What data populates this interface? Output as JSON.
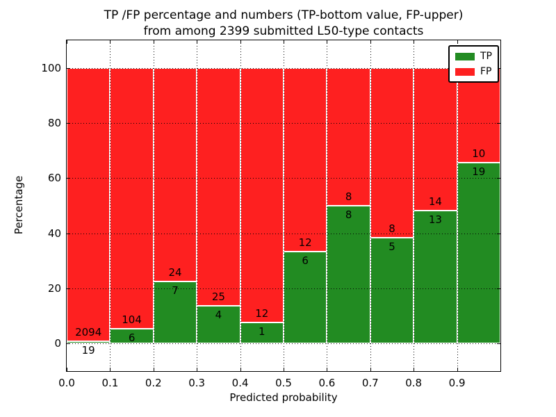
{
  "title": {
    "line1": "TP /FP percentage and numbers (TP-bottom value, FP-upper)",
    "line2": "from among 2399 submitted L50-type contacts"
  },
  "axes": {
    "xlabel": "Predicted probability",
    "ylabel": "Percentage",
    "x_tick_labels": [
      "0.0",
      "0.1",
      "0.2",
      "0.3",
      "0.4",
      "0.5",
      "0.6",
      "0.7",
      "0.8",
      "0.9"
    ],
    "x_tick_values": [
      0.0,
      0.1,
      0.2,
      0.3,
      0.4,
      0.5,
      0.6,
      0.7,
      0.8,
      0.9
    ],
    "y_tick_labels": [
      "0",
      "20",
      "40",
      "60",
      "80",
      "100"
    ],
    "y_tick_values": [
      0,
      20,
      40,
      60,
      80,
      100
    ]
  },
  "colors": {
    "tp": "#228b22",
    "fp": "#fe2020",
    "bar_edge": "#ffffff",
    "grid": "#000000",
    "background": "#ffffff",
    "text": "#000000"
  },
  "legend": {
    "items": [
      {
        "label": "TP",
        "color": "#228b22"
      },
      {
        "label": "FP",
        "color": "#fe2020"
      }
    ]
  },
  "chart_data": {
    "type": "bar",
    "stacked": true,
    "normalized": "each bin scaled to 100%",
    "title": "TP /FP percentage and numbers (TP-bottom value, FP-upper) from among 2399 submitted L50-type contacts",
    "xlabel": "Predicted probability",
    "ylabel": "Percentage",
    "xlim": [
      0.0,
      1.0
    ],
    "ylim": [
      -10,
      110
    ],
    "grid": "dotted, both axes",
    "legend_position": "upper right",
    "bin_width": 0.1,
    "total_contacts": 2399,
    "annotation_scheme": "TP count printed below segment boundary, FP count above",
    "bins": [
      {
        "range": "0.0-0.1",
        "x_start": 0.0,
        "tp": 19,
        "fp": 2094,
        "tp_percent": 0.9
      },
      {
        "range": "0.1-0.2",
        "x_start": 0.1,
        "tp": 6,
        "fp": 104,
        "tp_percent": 5.5
      },
      {
        "range": "0.2-0.3",
        "x_start": 0.2,
        "tp": 7,
        "fp": 24,
        "tp_percent": 22.6
      },
      {
        "range": "0.3-0.4",
        "x_start": 0.3,
        "tp": 4,
        "fp": 25,
        "tp_percent": 13.8
      },
      {
        "range": "0.4-0.5",
        "x_start": 0.4,
        "tp": 1,
        "fp": 12,
        "tp_percent": 7.7
      },
      {
        "range": "0.5-0.6",
        "x_start": 0.5,
        "tp": 6,
        "fp": 12,
        "tp_percent": 33.3
      },
      {
        "range": "0.6-0.7",
        "x_start": 0.6,
        "tp": 8,
        "fp": 8,
        "tp_percent": 50.0
      },
      {
        "range": "0.7-0.8",
        "x_start": 0.7,
        "tp": 5,
        "fp": 8,
        "tp_percent": 38.5
      },
      {
        "range": "0.8-0.9",
        "x_start": 0.8,
        "tp": 13,
        "fp": 14,
        "tp_percent": 48.1
      },
      {
        "range": "0.9-1.0",
        "x_start": 0.9,
        "tp": 19,
        "fp": 10,
        "tp_percent": 65.5
      }
    ]
  }
}
